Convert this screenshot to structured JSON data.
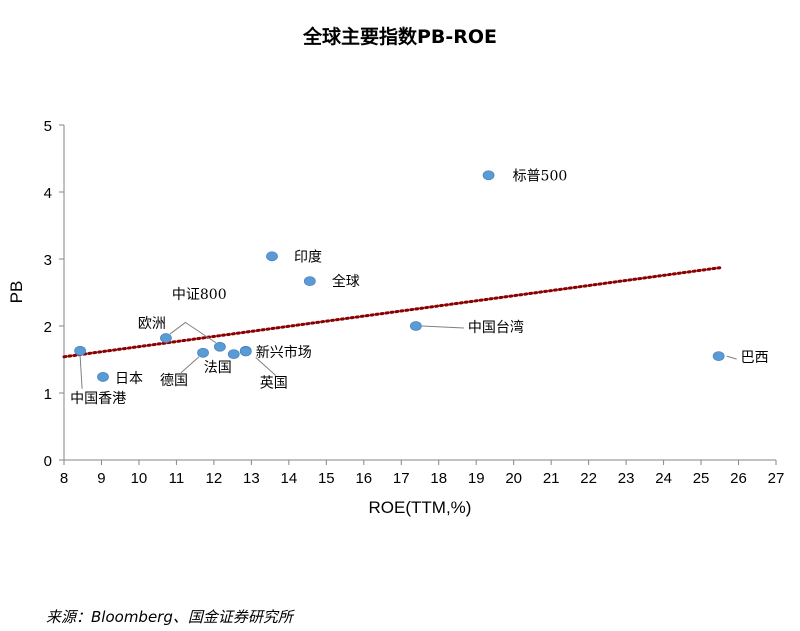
{
  "chart_data": {
    "type": "scatter",
    "title": "全球主要指数PB-ROE",
    "xlabel": "ROE(TTM,%)",
    "ylabel": "PB",
    "xlim": [
      8,
      27
    ],
    "ylim": [
      0,
      5
    ],
    "xticks": [
      8,
      9,
      10,
      11,
      12,
      13,
      14,
      15,
      16,
      17,
      18,
      19,
      20,
      21,
      22,
      23,
      24,
      25,
      26,
      27
    ],
    "yticks": [
      0,
      1,
      2,
      3,
      4,
      5
    ],
    "grid": false,
    "point_color": "#5B9BD5",
    "trendline": {
      "type": "linear",
      "style": "dotted",
      "color": "#8B0000",
      "x": [
        8,
        25.5
      ],
      "y": [
        1.54,
        2.87
      ]
    },
    "points": [
      {
        "label": "标普500",
        "x": 19.33,
        "y": 4.25
      },
      {
        "label": "印度",
        "x": 13.55,
        "y": 3.04
      },
      {
        "label": "全球",
        "x": 14.56,
        "y": 2.67
      },
      {
        "label": "中国台湾",
        "x": 17.39,
        "y": 2.0
      },
      {
        "label": "巴西",
        "x": 25.47,
        "y": 1.55
      },
      {
        "label": "欧洲",
        "x": 10.72,
        "y": 1.82
      },
      {
        "label": "中证800",
        "x": 12.16,
        "y": 1.69
      },
      {
        "label": "中国香港",
        "x": 8.43,
        "y": 1.63
      },
      {
        "label": "日本",
        "x": 9.04,
        "y": 1.24
      },
      {
        "label": "德国",
        "x": 11.71,
        "y": 1.6
      },
      {
        "label": "法国",
        "x": 12.53,
        "y": 1.58
      },
      {
        "label": "新兴市场",
        "x": 12.85,
        "y": 1.63
      },
      {
        "label": "英国",
        "x": 12.85,
        "y": 1.62
      }
    ]
  },
  "source": "来源：Bloomberg、国金证券研究所"
}
